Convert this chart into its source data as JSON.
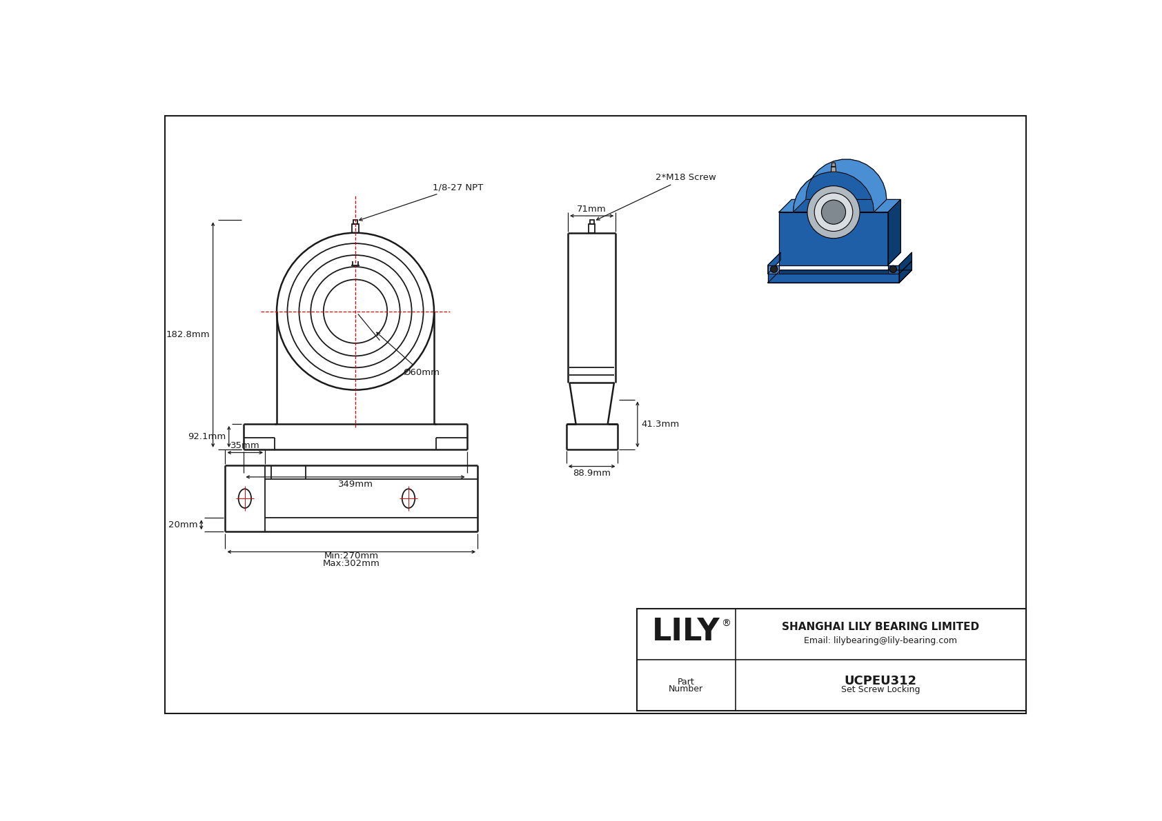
{
  "bg": "#ffffff",
  "lc": "#1a1a1a",
  "rc": "#dd0000",
  "company": "SHANGHAI LILY BEARING LIMITED",
  "email": "Email: lilybearing@lily-bearing.com",
  "part_number": "UCPEU312",
  "locking_type": "Set Screw Locking",
  "dim_total_width": "349mm",
  "dim_height_total": "182.8mm",
  "dim_height_base": "92.1mm",
  "dim_bore": "Ø60mm",
  "dim_npt": "1/8-27 NPT",
  "dim_screw": "2*M18 Screw",
  "dim_side_w": "71mm",
  "dim_side_h1": "41.3mm",
  "dim_side_h2": "88.9mm",
  "dim_bot1": "35mm",
  "dim_bot2": "20mm",
  "dim_bot3": "Min:270mm",
  "dim_bot4": "Max:302mm"
}
